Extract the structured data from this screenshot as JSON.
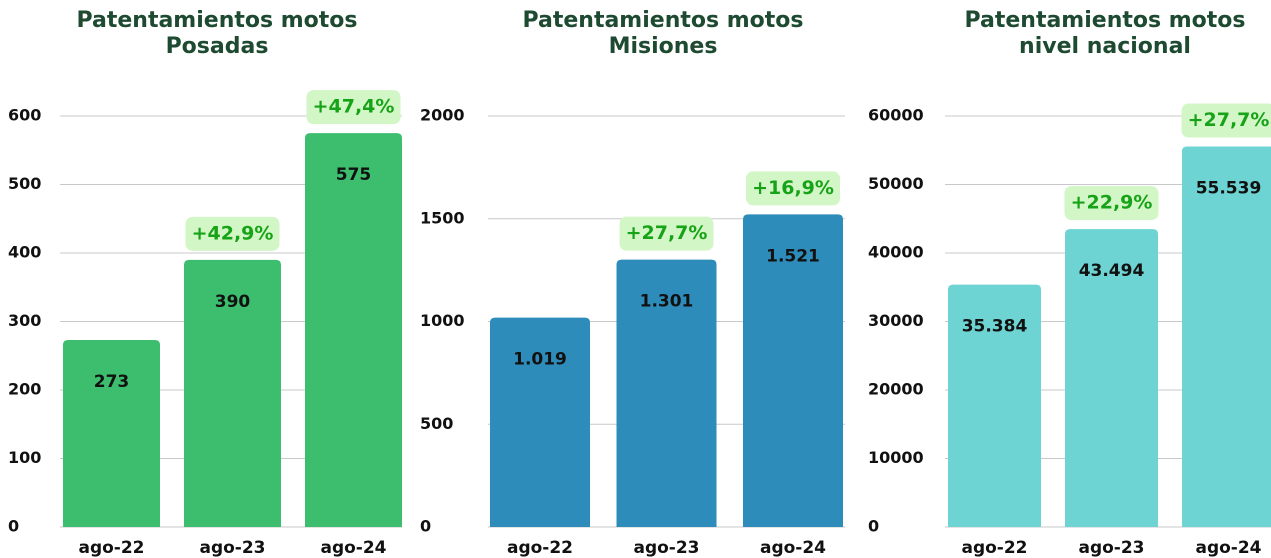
{
  "chart_data": [
    {
      "type": "bar",
      "title": "Patentamientos motos\nPosadas",
      "categories": [
        "ago-22",
        "ago-23",
        "ago-24"
      ],
      "values": [
        273,
        390,
        575
      ],
      "annotations": [
        null,
        "+42,9%",
        "+47,4%"
      ],
      "color": "#3dbe6f",
      "ylim": [
        0,
        600
      ],
      "yticks": [
        0,
        100,
        200,
        300,
        400,
        500,
        600
      ],
      "grid": true
    },
    {
      "type": "bar",
      "title": "Patentamientos motos\nMisiones",
      "categories": [
        "ago-22",
        "ago-23",
        "ago-24"
      ],
      "values": [
        1019,
        1301,
        1521
      ],
      "value_labels": [
        "1.019",
        "1.301",
        "1.521"
      ],
      "annotations": [
        null,
        "+27,7%",
        "+16,9%"
      ],
      "color": "#2e8cbb",
      "ylim": [
        0,
        2000
      ],
      "yticks": [
        0,
        500,
        1000,
        1500,
        2000
      ],
      "grid": true
    },
    {
      "type": "bar",
      "title": "Patentamientos motos\nnivel nacional",
      "categories": [
        "ago-22",
        "ago-23",
        "ago-24"
      ],
      "values": [
        35384,
        43494,
        55539
      ],
      "value_labels": [
        "35.384",
        "43.494",
        "55.539"
      ],
      "annotations": [
        null,
        "+22,9%",
        "+27,7%"
      ],
      "color": "#6dd3d3",
      "ylim": [
        0,
        60000
      ],
      "yticks": [
        0,
        10000,
        20000,
        30000,
        40000,
        50000,
        60000
      ],
      "grid": true
    }
  ]
}
